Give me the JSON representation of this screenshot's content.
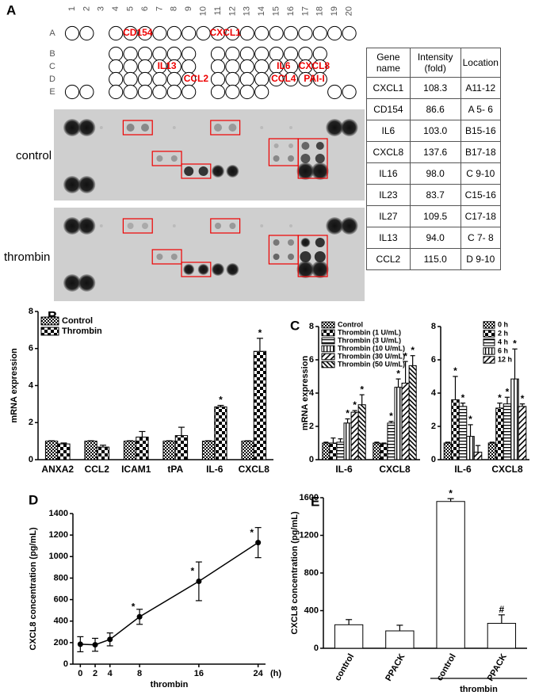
{
  "panel_a": {
    "label": "A",
    "columns": [
      "1",
      "2",
      "3",
      "4",
      "5",
      "6",
      "7",
      "8",
      "9",
      "10",
      "11",
      "12",
      "13",
      "14",
      "15",
      "16",
      "17",
      "18",
      "19",
      "20"
    ],
    "rows": [
      "A",
      "B",
      "C",
      "D",
      "E"
    ],
    "genes": [
      "CD154",
      "CXCL1",
      "IL13",
      "CCL2",
      "IL6",
      "CXCL8",
      "CCL4",
      "PAI-I"
    ],
    "blots": [
      "control",
      "thrombin"
    ],
    "table": {
      "header": [
        "Gene name",
        "Intensity (fold)",
        "Location"
      ],
      "rows": [
        [
          "CXCL1",
          "108.3",
          "A11-12"
        ],
        [
          "CD154",
          "86.6",
          "A 5- 6"
        ],
        [
          "IL6",
          "103.0",
          "B15-16"
        ],
        [
          "CXCL8",
          "137.6",
          "B17-18"
        ],
        [
          "IL16",
          "98.0",
          "C 9-10"
        ],
        [
          "IL23",
          "83.7",
          "C15-16"
        ],
        [
          "IL27",
          "109.5",
          "C17-18"
        ],
        [
          "IL13",
          "94.0",
          "C 7- 8"
        ],
        [
          "CCL2",
          "115.0",
          "D 9-10"
        ]
      ]
    }
  },
  "chart_data": [
    {
      "type": "bar",
      "panel_label": "B",
      "ylabel": "mRNA expression",
      "categories": [
        "ANXA2",
        "CCL2",
        "ICAM1",
        "tPA",
        "IL-6",
        "CXCL8"
      ],
      "series": [
        {
          "name": "Control",
          "pattern": "checker-fine",
          "values": [
            1,
            1,
            1,
            1,
            1,
            1
          ],
          "errors": [
            0.02,
            0.02,
            0.02,
            0.02,
            0.02,
            0.02
          ],
          "significance": [
            null,
            null,
            null,
            null,
            null,
            null
          ]
        },
        {
          "name": "Thrombin",
          "pattern": "checker",
          "values": [
            0.85,
            0.68,
            1.22,
            1.3,
            2.85,
            5.85
          ],
          "errors": [
            0.05,
            0.1,
            0.3,
            0.45,
            0.08,
            0.7
          ],
          "significance": [
            null,
            null,
            null,
            null,
            "*",
            "*"
          ]
        }
      ],
      "ylim": [
        0,
        8
      ],
      "yticks": [
        0,
        2,
        4,
        6,
        8
      ],
      "legend": "upper left"
    },
    {
      "type": "bar",
      "panel_label": "C",
      "ylabel": "mRNA expression",
      "categories": [
        "IL-6",
        "CXCL8"
      ],
      "series": [
        {
          "name": "Control",
          "pattern": "checker-fine",
          "values": [
            1.0,
            1.0
          ],
          "errors": [
            0.05,
            0.05
          ],
          "significance": [
            null,
            null
          ]
        },
        {
          "name": "Thrombin (1 U/mL)",
          "pattern": "checker",
          "values": [
            1.0,
            0.95
          ],
          "errors": [
            0.3,
            0.05
          ],
          "significance": [
            null,
            null
          ]
        },
        {
          "name": "Thrombin (3 U/mL)",
          "pattern": "hlines",
          "values": [
            1.05,
            2.2
          ],
          "errors": [
            0.2,
            0.1
          ],
          "significance": [
            null,
            "*"
          ]
        },
        {
          "name": "Thrombin (10 U/mL)",
          "pattern": "vlines",
          "values": [
            2.2,
            4.35
          ],
          "errors": [
            0.25,
            0.5
          ],
          "significance": [
            "*",
            "*"
          ]
        },
        {
          "name": "Thrombin (30 U/mL)",
          "pattern": "diag",
          "values": [
            2.85,
            4.6
          ],
          "errors": [
            0.1,
            1.3
          ],
          "significance": [
            "*",
            "*"
          ]
        },
        {
          "name": "Thrombin (50 U/mL)",
          "pattern": "diag2",
          "values": [
            3.3,
            5.65
          ],
          "errors": [
            0.6,
            0.6
          ],
          "significance": [
            "*",
            "*"
          ]
        }
      ],
      "ylim": [
        0,
        8
      ],
      "yticks": [
        0,
        2,
        4,
        6,
        8
      ],
      "legend": "upper left"
    },
    {
      "type": "bar",
      "categories": [
        "IL-6",
        "CXCL8"
      ],
      "series": [
        {
          "name": "0 h",
          "pattern": "checker-fine",
          "values": [
            1.0,
            1.0
          ],
          "errors": [
            0.05,
            0.05
          ],
          "significance": [
            null,
            null
          ]
        },
        {
          "name": "2 h",
          "pattern": "checker",
          "values": [
            3.6,
            3.1
          ],
          "errors": [
            1.4,
            0.3
          ],
          "significance": [
            "*",
            "*"
          ]
        },
        {
          "name": "4 h",
          "pattern": "hlines",
          "values": [
            3.2,
            3.35
          ],
          "errors": [
            0.2,
            0.4
          ],
          "significance": [
            "*",
            "*"
          ]
        },
        {
          "name": "6 h",
          "pattern": "vlines",
          "values": [
            1.4,
            4.85
          ],
          "errors": [
            0.7,
            1.8
          ],
          "significance": [
            "*",
            "*"
          ]
        },
        {
          "name": "12 h",
          "pattern": "diag",
          "values": [
            0.45,
            3.2
          ],
          "errors": [
            0.4,
            0.15
          ],
          "significance": [
            null,
            "*"
          ]
        }
      ],
      "ylim": [
        0,
        8
      ],
      "yticks": [
        0,
        2,
        4,
        6,
        8
      ],
      "legend": "upper right"
    },
    {
      "type": "line",
      "panel_label": "D",
      "ylabel": "CXCL8 concentration (pg/mL)",
      "xlabel": "thrombin",
      "xunit": "(h)",
      "x": [
        0,
        2,
        4,
        8,
        16,
        24
      ],
      "values": [
        185,
        180,
        230,
        440,
        770,
        1130
      ],
      "errors": [
        70,
        60,
        60,
        70,
        180,
        140
      ],
      "significance": [
        null,
        null,
        null,
        "*",
        "*",
        "*"
      ],
      "xlim": [
        -1,
        25
      ],
      "xticks": [
        0,
        2,
        4,
        8,
        16,
        24
      ],
      "ylim": [
        0,
        1400
      ],
      "yticks": [
        0,
        200,
        400,
        600,
        800,
        1000,
        1200,
        1400
      ],
      "color": "#000"
    },
    {
      "type": "bar",
      "panel_label": "E",
      "ylabel": "CXCL8 concentration (pg/mL)",
      "group_label": "thrombin",
      "categories": [
        "control",
        "PPACK",
        "control",
        "PPACK"
      ],
      "pattern": "white",
      "values": [
        250,
        185,
        1560,
        265
      ],
      "errors": [
        55,
        60,
        30,
        90
      ],
      "significance": [
        null,
        null,
        "*",
        "#"
      ],
      "ylim": [
        0,
        1600
      ],
      "yticks": [
        0,
        400,
        800,
        1200,
        1600
      ]
    }
  ]
}
